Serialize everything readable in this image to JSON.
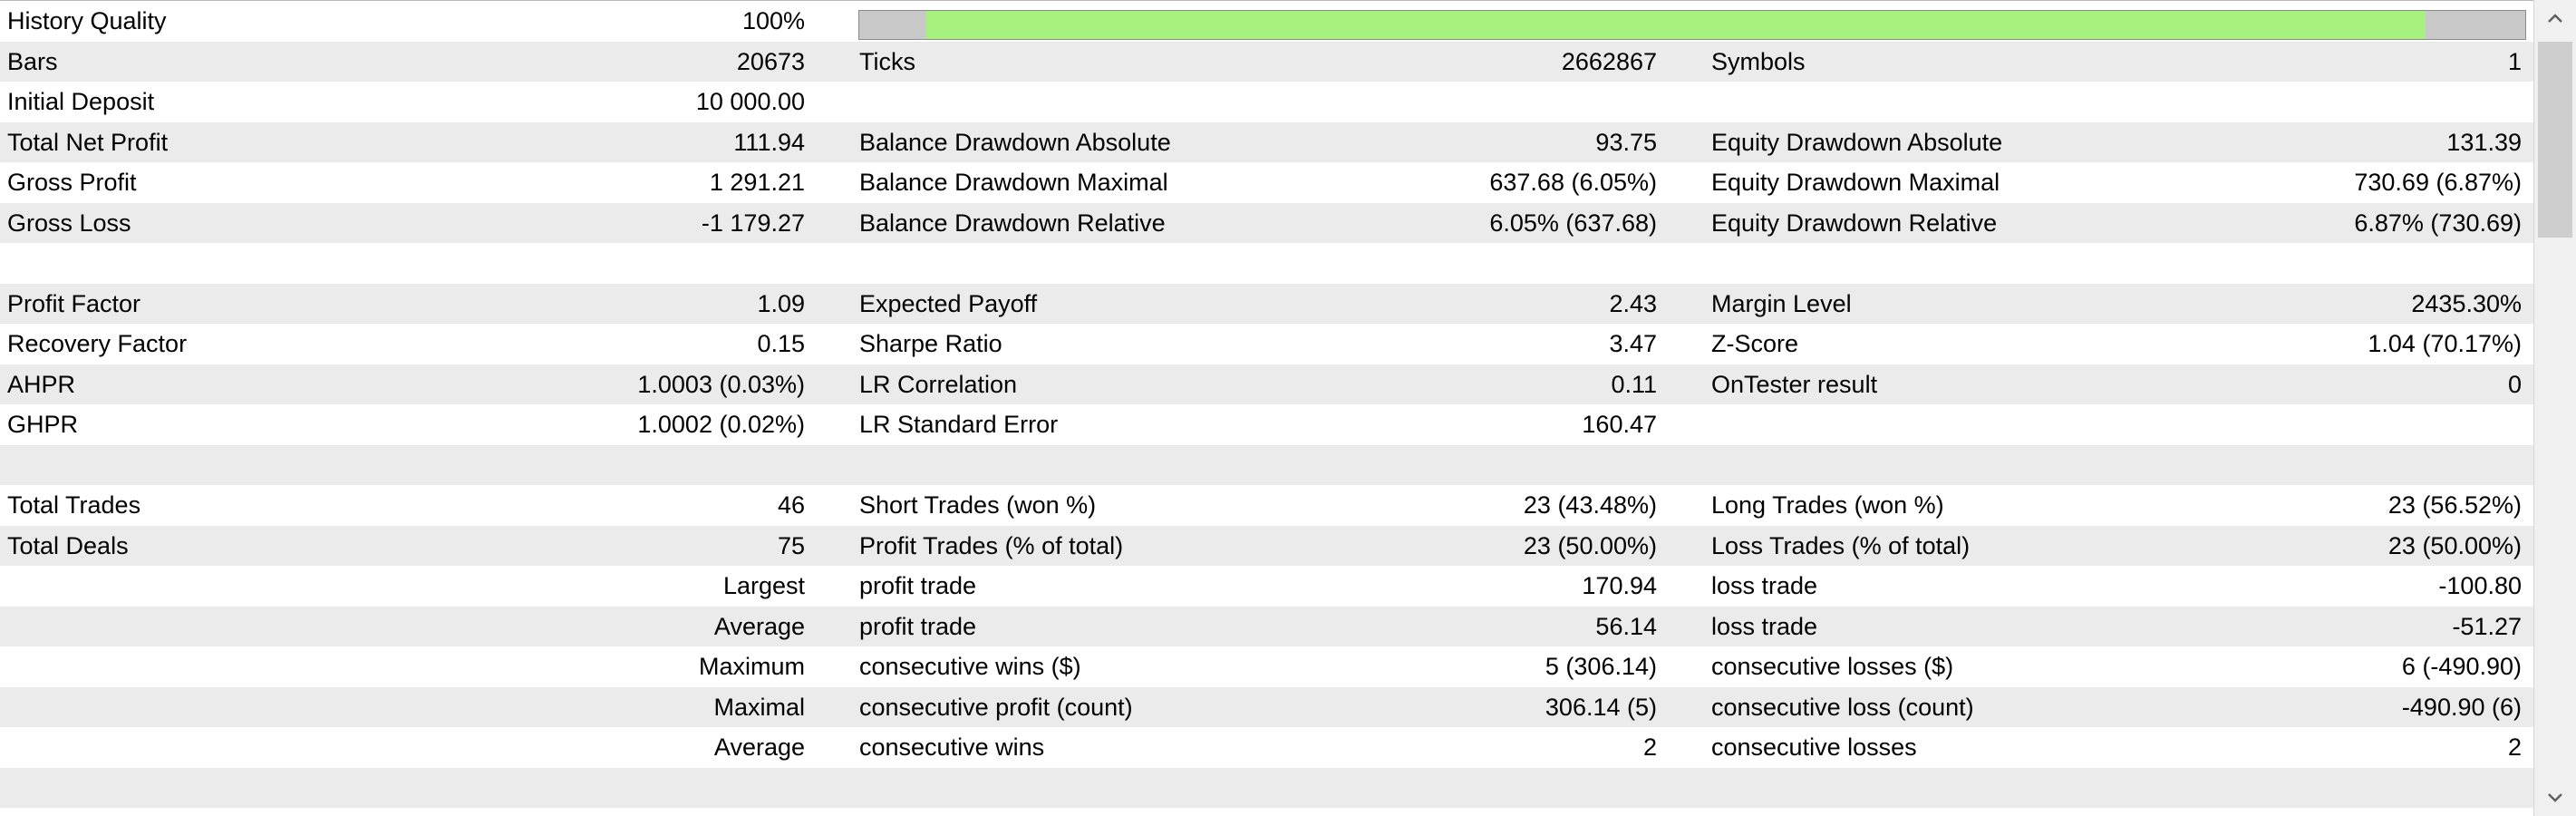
{
  "history_quality": {
    "label": "History Quality",
    "value": "100%",
    "bar_gray_leading_fraction": 0.04,
    "bar_green_fraction": 0.9,
    "bar_colors": {
      "green": "#a6f07e",
      "gray": "#c8c8c8"
    }
  },
  "rows": [
    {
      "shaded": true,
      "l1": "Bars",
      "v1": "20673",
      "l2": "Ticks",
      "v2": "2662867",
      "l3": "Symbols",
      "v3": "1"
    },
    {
      "shaded": false,
      "l1": "Initial Deposit",
      "v1": "10 000.00",
      "l2": "",
      "v2": "",
      "l3": "",
      "v3": ""
    },
    {
      "shaded": true,
      "l1": "Total Net Profit",
      "v1": "111.94",
      "l2": "Balance Drawdown Absolute",
      "v2": "93.75",
      "l3": "Equity Drawdown Absolute",
      "v3": "131.39"
    },
    {
      "shaded": false,
      "l1": "Gross Profit",
      "v1": "1 291.21",
      "l2": "Balance Drawdown Maximal",
      "v2": "637.68 (6.05%)",
      "l3": "Equity Drawdown Maximal",
      "v3": "730.69 (6.87%)"
    },
    {
      "shaded": true,
      "l1": "Gross Loss",
      "v1": "-1 179.27",
      "l2": "Balance Drawdown Relative",
      "v2": "6.05% (637.68)",
      "l3": "Equity Drawdown Relative",
      "v3": "6.87% (730.69)"
    },
    {
      "shaded": false,
      "l1": "",
      "v1": "",
      "l2": "",
      "v2": "",
      "l3": "",
      "v3": ""
    },
    {
      "shaded": true,
      "l1": "Profit Factor",
      "v1": "1.09",
      "l2": "Expected Payoff",
      "v2": "2.43",
      "l3": "Margin Level",
      "v3": "2435.30%"
    },
    {
      "shaded": false,
      "l1": "Recovery Factor",
      "v1": "0.15",
      "l2": "Sharpe Ratio",
      "v2": "3.47",
      "l3": "Z-Score",
      "v3": "1.04 (70.17%)"
    },
    {
      "shaded": true,
      "l1": "AHPR",
      "v1": "1.0003 (0.03%)",
      "l2": "LR Correlation",
      "v2": "0.11",
      "l3": "OnTester result",
      "v3": "0"
    },
    {
      "shaded": false,
      "l1": "GHPR",
      "v1": "1.0002 (0.02%)",
      "l2": "LR Standard Error",
      "v2": "160.47",
      "l3": "",
      "v3": ""
    },
    {
      "shaded": true,
      "l1": "",
      "v1": "",
      "l2": "",
      "v2": "",
      "l3": "",
      "v3": ""
    },
    {
      "shaded": false,
      "l1": "Total Trades",
      "v1": "46",
      "l2": "Short Trades (won %)",
      "v2": "23 (43.48%)",
      "l3": "Long Trades (won %)",
      "v3": "23 (56.52%)"
    },
    {
      "shaded": true,
      "l1": "Total Deals",
      "v1": "75",
      "l2": "Profit Trades (% of total)",
      "v2": "23 (50.00%)",
      "l3": "Loss Trades (% of total)",
      "v3": "23 (50.00%)"
    },
    {
      "shaded": false,
      "l1": "",
      "v1": "Largest",
      "l2": "profit trade",
      "v2": "170.94",
      "l3": "loss trade",
      "v3": "-100.80"
    },
    {
      "shaded": true,
      "l1": "",
      "v1": "Average",
      "l2": "profit trade",
      "v2": "56.14",
      "l3": "loss trade",
      "v3": "-51.27"
    },
    {
      "shaded": false,
      "l1": "",
      "v1": "Maximum",
      "l2": "consecutive wins ($)",
      "v2": "5 (306.14)",
      "l3": "consecutive losses ($)",
      "v3": "6 (-490.90)"
    },
    {
      "shaded": true,
      "l1": "",
      "v1": "Maximal",
      "l2": "consecutive profit (count)",
      "v2": "306.14 (5)",
      "l3": "consecutive loss (count)",
      "v3": "-490.90 (6)"
    },
    {
      "shaded": false,
      "l1": "",
      "v1": "Average",
      "l2": "consecutive wins",
      "v2": "2",
      "l3": "consecutive losses",
      "v3": "2"
    },
    {
      "shaded": true,
      "l1": "",
      "v1": "",
      "l2": "",
      "v2": "",
      "l3": "",
      "v3": ""
    }
  ],
  "scrollbar": {
    "up_icon": "chevron-up-icon",
    "down_icon": "chevron-down-icon"
  }
}
